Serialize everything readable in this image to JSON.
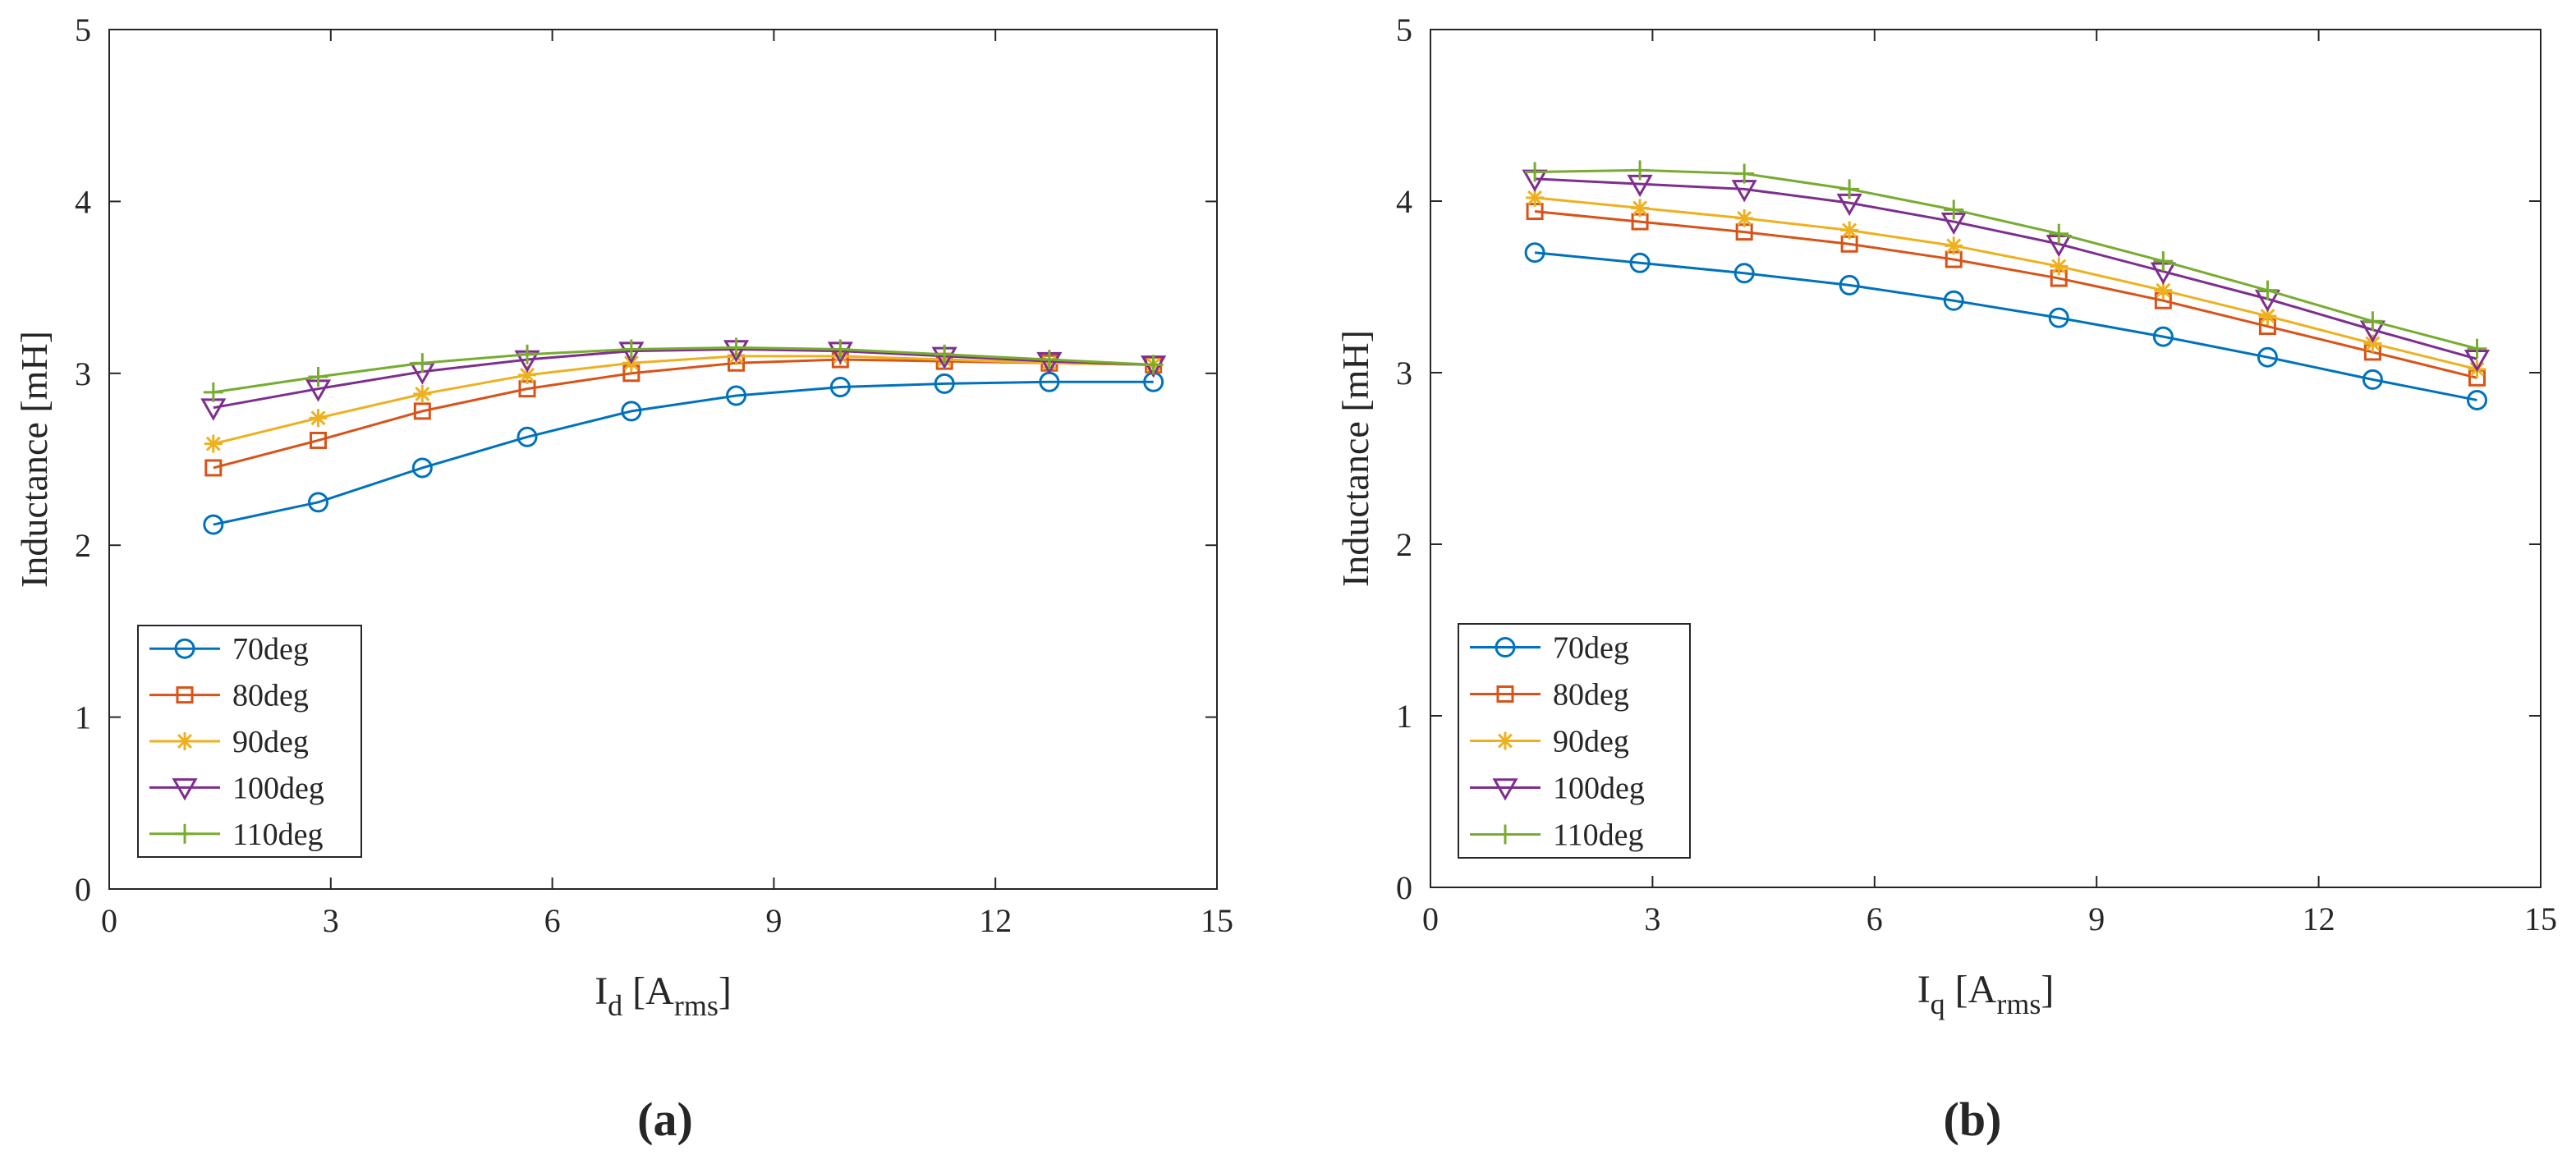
{
  "figure": {
    "labels": [
      "(a)",
      "(b)"
    ]
  },
  "chart_data": [
    {
      "type": "line",
      "panel": "(a)",
      "title": "",
      "xlabel": {
        "main": "I",
        "sub": "d",
        "unit_open": " [A",
        "unit_sub": "rms",
        "unit_close": "]"
      },
      "ylabel": "Inductance [mH]",
      "xlim": [
        0,
        15
      ],
      "ylim": [
        0,
        5
      ],
      "xticks": [
        0,
        3,
        6,
        9,
        12,
        15
      ],
      "yticks": [
        0,
        1,
        2,
        3,
        4,
        5
      ],
      "x": [
        1.41,
        2.83,
        4.24,
        5.66,
        7.07,
        8.49,
        9.9,
        11.31,
        12.73,
        14.14
      ],
      "legend_position": "bottom-left",
      "series": [
        {
          "name": "70deg",
          "marker": "circle",
          "color": "#0072BD",
          "values": [
            2.12,
            2.25,
            2.45,
            2.63,
            2.78,
            2.87,
            2.92,
            2.94,
            2.95,
            2.95
          ]
        },
        {
          "name": "80deg",
          "marker": "square",
          "color": "#D95319",
          "values": [
            2.45,
            2.61,
            2.78,
            2.91,
            3.0,
            3.06,
            3.08,
            3.07,
            3.06,
            3.05
          ]
        },
        {
          "name": "90deg",
          "marker": "asterisk",
          "color": "#EDB120",
          "values": [
            2.59,
            2.74,
            2.88,
            2.99,
            3.06,
            3.1,
            3.1,
            3.08,
            3.06,
            3.05
          ]
        },
        {
          "name": "100deg",
          "marker": "triangle-down",
          "color": "#7E2F8E",
          "values": [
            2.8,
            2.91,
            3.01,
            3.08,
            3.13,
            3.14,
            3.13,
            3.1,
            3.07,
            3.05
          ]
        },
        {
          "name": "110deg",
          "marker": "plus",
          "color": "#77AC30",
          "values": [
            2.89,
            2.98,
            3.06,
            3.11,
            3.14,
            3.15,
            3.14,
            3.11,
            3.08,
            3.05
          ]
        }
      ]
    },
    {
      "type": "line",
      "panel": "(b)",
      "title": "",
      "xlabel": {
        "main": "I",
        "sub": "q",
        "unit_open": " [A",
        "unit_sub": "rms",
        "unit_close": "]"
      },
      "ylabel": "Inductance [mH]",
      "xlim": [
        0,
        15
      ],
      "ylim": [
        0,
        5
      ],
      "xticks": [
        0,
        3,
        6,
        9,
        12,
        15
      ],
      "yticks": [
        0,
        1,
        2,
        3,
        4,
        5
      ],
      "x": [
        1.41,
        2.83,
        4.24,
        5.66,
        7.07,
        8.49,
        9.9,
        11.31,
        12.73,
        14.14
      ],
      "legend_position": "bottom-left",
      "series": [
        {
          "name": "70deg",
          "marker": "circle",
          "color": "#0072BD",
          "values": [
            3.7,
            3.64,
            3.58,
            3.51,
            3.42,
            3.32,
            3.21,
            3.09,
            2.96,
            2.84
          ]
        },
        {
          "name": "80deg",
          "marker": "square",
          "color": "#D95319",
          "values": [
            3.94,
            3.88,
            3.82,
            3.75,
            3.66,
            3.55,
            3.42,
            3.27,
            3.12,
            2.97
          ]
        },
        {
          "name": "90deg",
          "marker": "asterisk",
          "color": "#EDB120",
          "values": [
            4.02,
            3.96,
            3.9,
            3.83,
            3.74,
            3.62,
            3.48,
            3.33,
            3.17,
            3.02
          ]
        },
        {
          "name": "100deg",
          "marker": "triangle-down",
          "color": "#7E2F8E",
          "values": [
            4.13,
            4.1,
            4.07,
            3.99,
            3.88,
            3.75,
            3.59,
            3.43,
            3.25,
            3.08
          ]
        },
        {
          "name": "110deg",
          "marker": "plus",
          "color": "#77AC30",
          "values": [
            4.17,
            4.18,
            4.16,
            4.07,
            3.95,
            3.81,
            3.65,
            3.48,
            3.3,
            3.14
          ]
        }
      ]
    }
  ]
}
